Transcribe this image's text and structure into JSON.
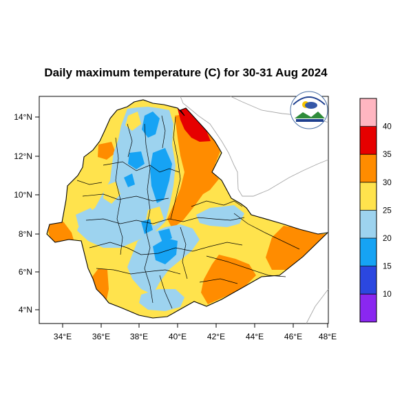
{
  "title": "Daily maximum temperature (C) for 30-31 Aug 2024",
  "map": {
    "lon_range": [
      33,
      48.2
    ],
    "lat_range": [
      3.2,
      15
    ],
    "lon_ticks": [
      "34°E",
      "36°E",
      "38°E",
      "40°E",
      "42°E",
      "44°E",
      "46°E",
      "48°E"
    ],
    "lat_ticks": [
      "14°N",
      "12°N",
      "10°N",
      "8°N",
      "6°N",
      "4°N"
    ]
  },
  "colorbar": {
    "colors": [
      "#ffb6c1",
      "#e60000",
      "#ff8c00",
      "#ffe34d",
      "#9dd3ef",
      "#16a3f4",
      "#2b47e0",
      "#8a27f0"
    ],
    "labels": [
      "40",
      "35",
      "30",
      "25",
      "20",
      "15",
      "10"
    ]
  },
  "logo": {
    "icon": "ethiopian-meteorology-logo"
  }
}
